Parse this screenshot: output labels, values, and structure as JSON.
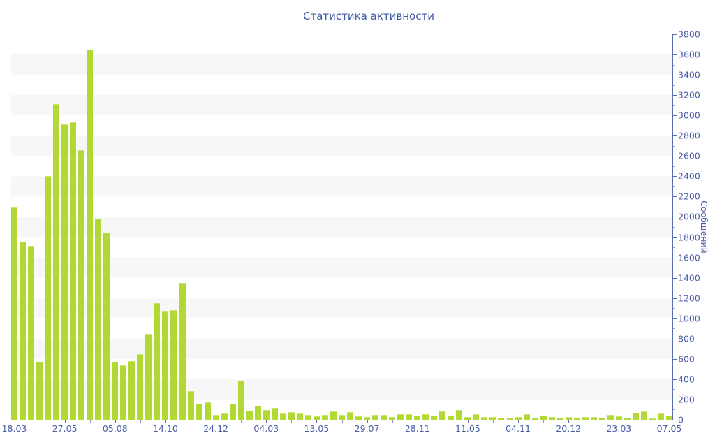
{
  "chart_data": {
    "type": "bar",
    "title": "Статистика активности",
    "ylabel": "Сообщений",
    "xlabel": "",
    "ylim": [
      0,
      3800
    ],
    "ytick_step": 200,
    "ytick_minor_step": 100,
    "grid": "alternating-horizontal-bands",
    "legend_position": "none",
    "axis_side": "right",
    "x_labels": [
      "18.03",
      "27.05",
      "05.08",
      "14.10",
      "24.12",
      "04.03",
      "13.05",
      "29.07",
      "28.11",
      "11.05",
      "04.11",
      "20.12",
      "23.03",
      "07.05"
    ],
    "label_every": 6,
    "minor_tick_every": 3,
    "values": [
      2090,
      1755,
      1715,
      570,
      2400,
      3110,
      2915,
      2930,
      2655,
      3650,
      1985,
      1845,
      570,
      535,
      580,
      645,
      845,
      1150,
      1075,
      1080,
      1350,
      280,
      155,
      175,
      50,
      65,
      160,
      385,
      90,
      135,
      95,
      120,
      65,
      75,
      65,
      50,
      35,
      50,
      80,
      50,
      75,
      35,
      25,
      50,
      50,
      30,
      55,
      55,
      40,
      55,
      40,
      85,
      40,
      95,
      25,
      55,
      30,
      25,
      20,
      20,
      25,
      55,
      20,
      40,
      30,
      20,
      30,
      20,
      25,
      30,
      20,
      50,
      35,
      20,
      70,
      85,
      15,
      65,
      40
    ],
    "colors": {
      "bar": "#b2d836",
      "bar_edge": "#cbe76a",
      "axis": "#5b6dad",
      "minor_tick": "#9aa5c9",
      "tick_label": "#4a5ea8",
      "title": "#3f5ba9",
      "band": "#f7f7f7",
      "background": "#ffffff"
    }
  }
}
